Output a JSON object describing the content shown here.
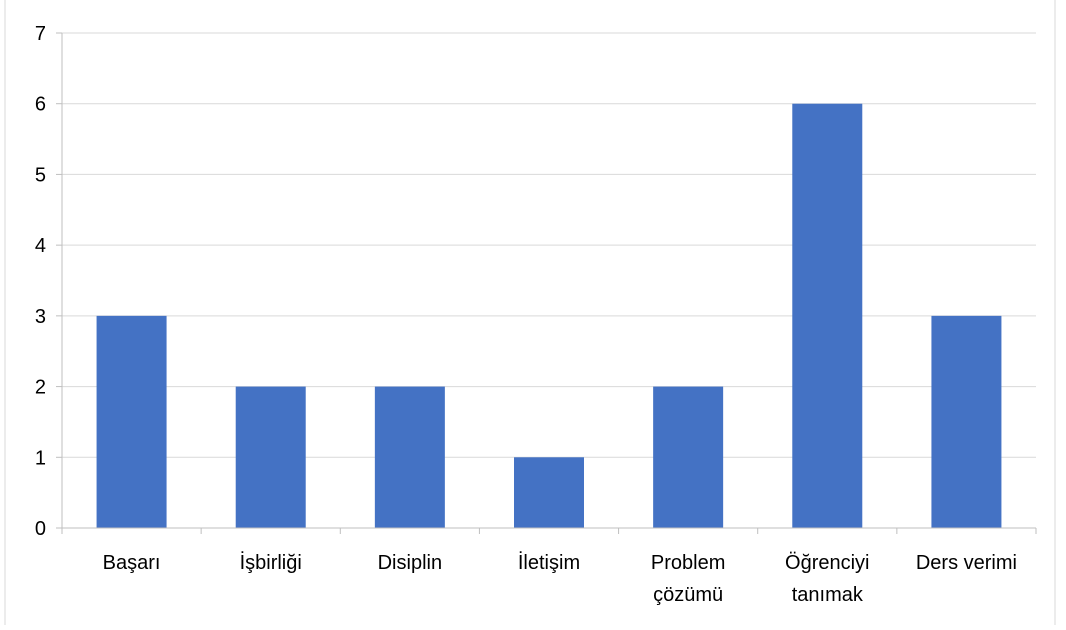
{
  "chart_data": {
    "type": "bar",
    "categories": [
      "Başarı",
      "İşbirliği",
      "Disiplin",
      "İletişim",
      "Problem\nçözümü",
      "Öğrenciyi\ntanımak",
      "Ders verimi"
    ],
    "values": [
      3,
      2,
      2,
      1,
      2,
      6,
      3
    ],
    "ylim": [
      0,
      7
    ],
    "yticks": [
      "0",
      "1",
      "2",
      "3",
      "4",
      "5",
      "6",
      "7"
    ],
    "grid": true,
    "legend": "none",
    "title": "",
    "xlabel": "",
    "ylabel": "",
    "colors": {
      "bar": "#4472C4",
      "grid": "#D9D9D9",
      "axis": "#BFBFBF",
      "frame": "#D9D9D9"
    }
  }
}
